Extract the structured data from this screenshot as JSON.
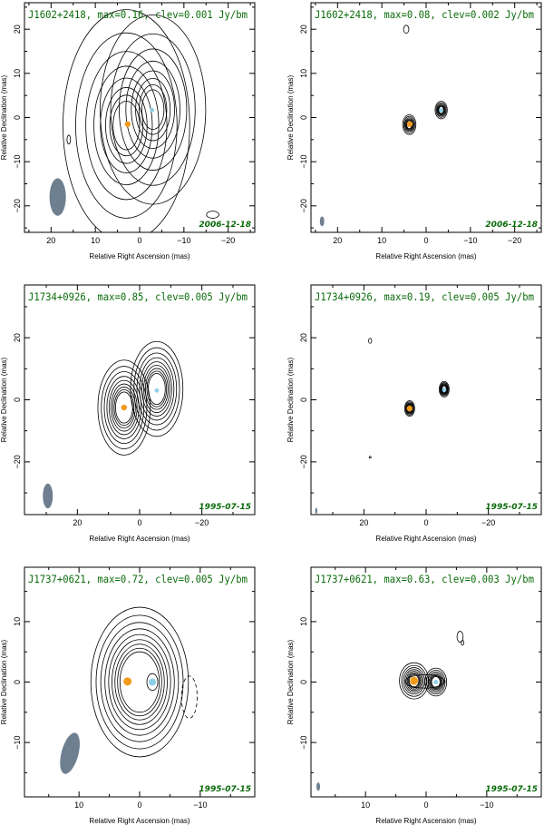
{
  "colors": {
    "title": "#0a6b0a",
    "beam": "#6e7f90",
    "core": "#f29a1c",
    "component": "#8ecfe8",
    "contour": "#000000"
  },
  "chart_data": [
    {
      "type": "contour",
      "title": "J1602+2418, max=0.16, clev=0.001 Jy/bm",
      "date": "2006-12-18",
      "xlabel": "Relative Right Ascension (mas)",
      "ylabel": "Relative Declination (mas)",
      "xlim": [
        26,
        -26
      ],
      "ylim": [
        -26,
        26
      ],
      "xticks": [
        20,
        10,
        0,
        -10,
        -20
      ],
      "yticks": [
        20,
        10,
        0,
        -10,
        -20
      ],
      "beam": {
        "x": 18.5,
        "y": -18,
        "major": 8.5,
        "minor": 3.7,
        "pa": 0
      },
      "core": {
        "x": 2.7,
        "y": -1.5
      },
      "component": {
        "x": -2.8,
        "y": 1.7
      },
      "sources": [
        {
          "x": 3,
          "y": -1.8,
          "w": 6,
          "h": 11,
          "n": 8
        },
        {
          "x": -3,
          "y": 1.8,
          "w": 5,
          "h": 9,
          "n": 8
        }
      ],
      "contour_spread": 1.25,
      "extras": [
        {
          "x": 16,
          "y": -5,
          "w": 0.4,
          "h": 1.0
        },
        {
          "x": -16.5,
          "y": -22,
          "w": 1.4,
          "h": 0.8
        }
      ]
    },
    {
      "type": "contour",
      "title": "J1602+2418, max=0.08, clev=0.002 Jy/bm",
      "date": "2006-12-18",
      "xlabel": "Relative Right Ascension (mas)",
      "ylabel": "Relative Declination (mas)",
      "xlim": [
        26,
        -26
      ],
      "ylim": [
        -26,
        26
      ],
      "xticks": [
        20,
        10,
        0,
        -10,
        -20
      ],
      "yticks": [
        20,
        10,
        0,
        -10,
        -20
      ],
      "beam": {
        "x": 23.5,
        "y": -23.5,
        "major": 2.2,
        "minor": 1.0,
        "pa": 0
      },
      "core": {
        "x": 3.7,
        "y": -1.5
      },
      "component": {
        "x": -3.4,
        "y": 1.6
      },
      "sources": [
        {
          "x": 3.8,
          "y": -1.6,
          "w": 1.2,
          "h": 1.8,
          "n": 6
        },
        {
          "x": -3.4,
          "y": 1.7,
          "w": 1.1,
          "h": 1.6,
          "n": 6
        }
      ],
      "contour_spread": 1.2,
      "extras": [
        {
          "x": 4.5,
          "y": 20,
          "w": 0.6,
          "h": 0.9
        }
      ]
    },
    {
      "type": "contour",
      "title": "J1734+0926, max=0.85, clev=0.005 Jy/bm",
      "date": "1995-07-15",
      "xlabel": "Relative Right Ascension (mas)",
      "ylabel": "Relative Declination (mas)",
      "xlim": [
        37,
        -37
      ],
      "ylim": [
        -37,
        37
      ],
      "xticks": [
        20,
        0,
        -20
      ],
      "yticks": [
        20,
        0,
        -20
      ],
      "beam": {
        "x": 29.5,
        "y": -31,
        "major": 8,
        "minor": 3.2,
        "pa": 0
      },
      "core": {
        "x": 5,
        "y": -2.5
      },
      "component": {
        "x": -5.5,
        "y": 3
      },
      "sources": [
        {
          "x": 5,
          "y": -2.5,
          "w": 5.5,
          "h": 10,
          "n": 9
        },
        {
          "x": -5.5,
          "y": 3.5,
          "w": 5.5,
          "h": 10,
          "n": 9
        }
      ],
      "contour_spread": 1.15,
      "extras": []
    },
    {
      "type": "contour",
      "title": "J1734+0926, max=0.19, clev=0.005 Jy/bm",
      "date": "1995-07-15",
      "xlabel": "Relative Right Ascension (mas)",
      "ylabel": "Relative Declination (mas)",
      "xlim": [
        37,
        -37
      ],
      "ylim": [
        -37,
        37
      ],
      "xticks": [
        20,
        0,
        -20
      ],
      "yticks": [
        20,
        0,
        -20
      ],
      "beam": {
        "x": 35.3,
        "y": -35.8,
        "major": 2,
        "minor": 0.7,
        "pa": 0
      },
      "core": {
        "x": 5.3,
        "y": -2.8
      },
      "component": {
        "x": -5.8,
        "y": 3.2
      },
      "sources": [
        {
          "x": 5.3,
          "y": -2.8,
          "w": 1.4,
          "h": 2.2,
          "n": 6
        },
        {
          "x": -5.8,
          "y": 3.4,
          "w": 1.4,
          "h": 2.2,
          "n": 6
        }
      ],
      "contour_spread": 1.18,
      "extras": [
        {
          "x": 18,
          "y": 19,
          "w": 0.5,
          "h": 0.8
        },
        {
          "x": 18,
          "y": -18.5,
          "w": 0.3,
          "h": 0.3
        }
      ]
    },
    {
      "type": "contour",
      "title": "J1737+0621, max=0.72, clev=0.005 Jy/bm",
      "date": "1995-07-15",
      "xlabel": "Relative Right Ascension (mas)",
      "ylabel": "Relative Declination (mas)",
      "xlim": [
        19,
        -19
      ],
      "ylim": [
        -19,
        19
      ],
      "xticks": [
        10,
        0,
        -10
      ],
      "yticks": [
        10,
        0,
        -10
      ],
      "beam": {
        "x": 11.5,
        "y": -11.8,
        "major": 7,
        "minor": 2.8,
        "pa": 15
      },
      "core": {
        "x": 2,
        "y": 0.1
      },
      "component": {
        "x": -2.1,
        "y": 0
      },
      "sources": [
        {
          "x": 0,
          "y": 0,
          "w": 6.5,
          "h": 10,
          "n": 9
        }
      ],
      "contour_spread": 1.12,
      "component_loop": true,
      "negative": {
        "x": -8.2,
        "y": -2.5,
        "w": 1.3,
        "h": 3.5
      },
      "extras": []
    },
    {
      "type": "contour",
      "title": "J1737+0621, max=0.63, clev=0.003 Jy/bm",
      "date": "1995-07-15",
      "xlabel": "Relative Right Ascension (mas)",
      "ylabel": "Relative Declination (mas)",
      "xlim": [
        19,
        -19
      ],
      "ylim": [
        -19,
        19
      ],
      "xticks": [
        10,
        0,
        -10
      ],
      "yticks": [
        10,
        0,
        -10
      ],
      "beam": {
        "x": 17.8,
        "y": -17.3,
        "major": 1.4,
        "minor": 0.6,
        "pa": 0
      },
      "core": {
        "x": 2,
        "y": 0.2
      },
      "component": {
        "x": -1.6,
        "y": 0
      },
      "sources": [
        {
          "x": 2,
          "y": 0.2,
          "w": 1.6,
          "h": 2,
          "n": 8
        },
        {
          "x": -1.6,
          "y": 0,
          "w": 1.4,
          "h": 1.8,
          "n": 7
        }
      ],
      "contour_spread": 1.17,
      "bridge": true,
      "extras": [
        {
          "x": -5.6,
          "y": 7.5,
          "w": 0.5,
          "h": 0.9
        },
        {
          "x": -6,
          "y": 6.5,
          "w": 0.2,
          "h": 0.4
        }
      ]
    }
  ]
}
